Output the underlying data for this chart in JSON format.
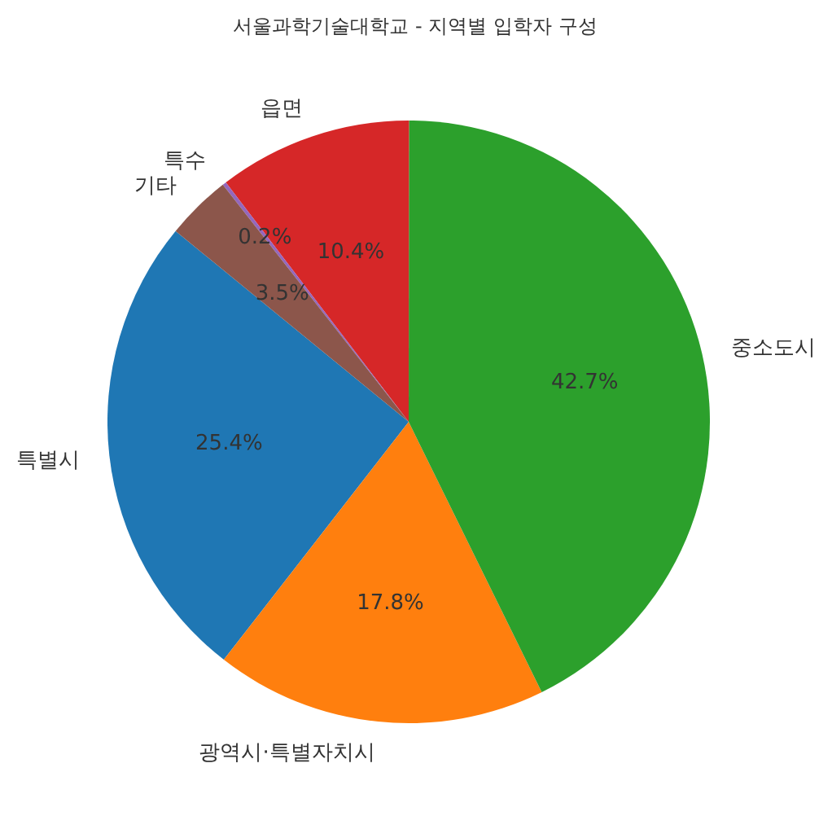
{
  "chart_data": {
    "type": "pie",
    "title": "서울과학기술대학교 - 지역별 입학자 구성",
    "categories": [
      "특별시",
      "광역시·특별자치시",
      "중소도시",
      "읍면",
      "특수",
      "기타"
    ],
    "values": [
      25.4,
      17.8,
      42.7,
      10.4,
      0.2,
      3.5
    ],
    "colors": [
      "#1f77b4",
      "#ff7f0e",
      "#2ca02c",
      "#d62728",
      "#9467bd",
      "#8c564b"
    ],
    "value_labels": [
      "25.4%",
      "17.8%",
      "42.7%",
      "10.4%",
      "0.2%",
      "3.5%"
    ]
  }
}
